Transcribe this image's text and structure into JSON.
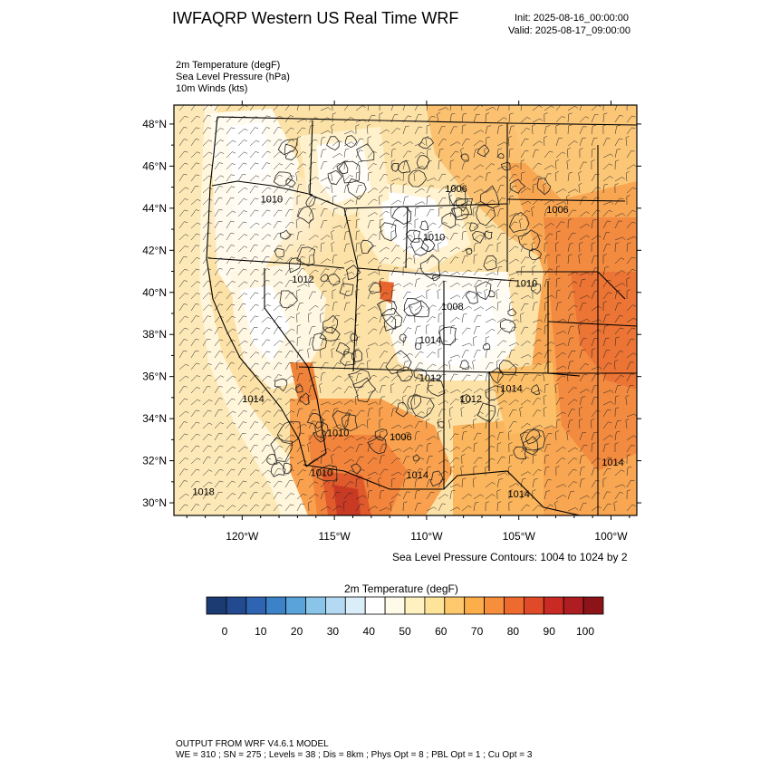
{
  "header": {
    "title": "IWFAQRP Western US Real Time WRF",
    "init": "Init: 2025-08-16_00:00:00",
    "valid": "Valid: 2025-08-17_09:00:00"
  },
  "fields": [
    "2m Temperature   (degF)",
    "Sea Level Pressure   (hPa)",
    "10m Winds   (kts)"
  ],
  "map": {
    "lat_range": [
      29.4,
      48.9
    ],
    "lon_range": [
      -123.7,
      -98.6
    ],
    "lat_ticks": [
      "48°N",
      "46°N",
      "44°N",
      "42°N",
      "40°N",
      "38°N",
      "36°N",
      "34°N",
      "32°N",
      "30°N"
    ],
    "lat_values": [
      48,
      46,
      44,
      42,
      40,
      38,
      36,
      34,
      32,
      30
    ],
    "lon_ticks": [
      "120°W",
      "115°W",
      "110°W",
      "105°W",
      "100°W"
    ],
    "lon_values": [
      -120,
      -115,
      -110,
      -105,
      -100
    ],
    "slp_labels": [
      {
        "text": "1010",
        "lat": 44.4,
        "lon": -118.4
      },
      {
        "text": "1006",
        "lat": 44.9,
        "lon": -108.4
      },
      {
        "text": "1006",
        "lat": 43.9,
        "lon": -102.9
      },
      {
        "text": "1010",
        "lat": 42.6,
        "lon": -109.6
      },
      {
        "text": "1012",
        "lat": 40.6,
        "lon": -116.7
      },
      {
        "text": "1010",
        "lat": 40.4,
        "lon": -104.6
      },
      {
        "text": "1008",
        "lat": 39.3,
        "lon": -108.6
      },
      {
        "text": "1014",
        "lat": 37.7,
        "lon": -109.8
      },
      {
        "text": "1012",
        "lat": 35.9,
        "lon": -109.8
      },
      {
        "text": "1014",
        "lat": 35.4,
        "lon": -105.4
      },
      {
        "text": "1012",
        "lat": 34.9,
        "lon": -107.6
      },
      {
        "text": "1014",
        "lat": 34.9,
        "lon": -119.4
      },
      {
        "text": "1010",
        "lat": 33.3,
        "lon": -114.8
      },
      {
        "text": "1006",
        "lat": 33.1,
        "lon": -111.4
      },
      {
        "text": "1014",
        "lat": 31.3,
        "lon": -110.5
      },
      {
        "text": "1010",
        "lat": 31.4,
        "lon": -115.7
      },
      {
        "text": "1018",
        "lat": 30.5,
        "lon": -122.1
      },
      {
        "text": "1014",
        "lat": 30.4,
        "lon": -105.0
      },
      {
        "text": "1014",
        "lat": 31.9,
        "lon": -99.9
      }
    ]
  },
  "contour_note": "Sea Level Pressure Contours: 1004 to 1024 by 2",
  "colorbar": {
    "title": "2m Temperature  (degF)",
    "labels": [
      "0",
      "10",
      "20",
      "30",
      "40",
      "50",
      "60",
      "70",
      "80",
      "90",
      "100"
    ],
    "colors": [
      "#1d3b73",
      "#234a8f",
      "#2f64b3",
      "#3c82c8",
      "#5aa3da",
      "#8ac4e8",
      "#b3daf2",
      "#d9eef9",
      "#ffffff",
      "#fffbe8",
      "#fff1c0",
      "#fee39a",
      "#fdc96c",
      "#fbae4a",
      "#f78e3c",
      "#ef6a2f",
      "#e04a28",
      "#c92a24",
      "#ae1d21",
      "#8c1419"
    ]
  },
  "footer": {
    "line1": "OUTPUT FROM WRF V4.6.1 MODEL",
    "line2": "WE = 310 ; SN = 275 ; Levels = 38 ; Dis = 8km ; Phys Opt = 8 ; PBL Opt = 1 ; Cu Opt = 3"
  }
}
